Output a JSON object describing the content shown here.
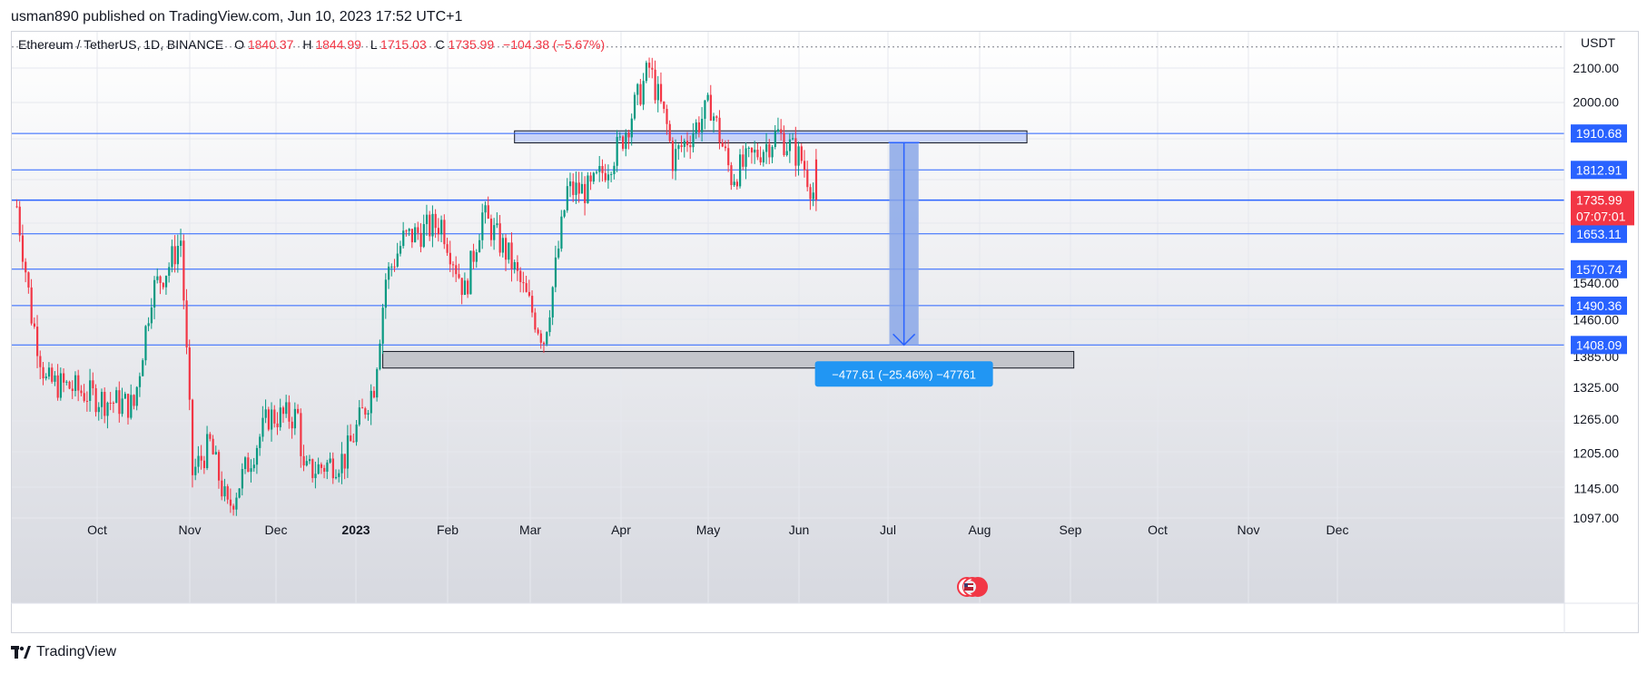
{
  "header": {
    "published_line": "usman890 published on TradingView.com, Jun 10, 2023 17:52 UTC+1"
  },
  "legend": {
    "symbol": "Ethereum / TetherUS, 1D, BINANCE",
    "o_label": "O",
    "o_value": "1840.37",
    "h_label": "H",
    "h_value": "1844.99",
    "l_label": "L",
    "l_value": "1715.03",
    "c_label": "C",
    "c_value": "1735.99",
    "change": "−104.38 (−5.67%)"
  },
  "axis": {
    "currency": "USDT"
  },
  "measure": {
    "label": "−477.61 (−25.46%) −47761"
  },
  "footer": {
    "brand": "TradingView"
  },
  "colors": {
    "up": "#089981",
    "down": "#f23645",
    "line": "#2962ff",
    "label_bg": "#2962ff",
    "last_price_bg": "#f23645",
    "measure_fill": "#8aa7e8",
    "zone_fill": "#c9d4f8",
    "support_fill": "#c3c5cb"
  },
  "chart_data": {
    "type": "candlestick",
    "title": "Ethereum / TetherUS, 1D, BINANCE",
    "ylabel": "USDT",
    "y_scale": "log",
    "ylim": [
      1097,
      2180
    ],
    "x_ticks": [
      "Oct",
      "Nov",
      "Dec",
      "2023",
      "Feb",
      "Mar",
      "Apr",
      "May",
      "Jun",
      "Jul",
      "Aug",
      "Sep",
      "Oct",
      "Nov",
      "Dec"
    ],
    "y_ticks": [
      "2100.00",
      "2000.00",
      "1540.00",
      "1460.00",
      "1385.00",
      "1325.00",
      "1265.00",
      "1205.00",
      "1145.00",
      "1097.00"
    ],
    "price_levels": [
      "1910.68",
      "1812.91",
      "1734.86",
      "1653.11",
      "1570.74",
      "1490.36",
      "1408.09"
    ],
    "last_price": {
      "value": "1735.99",
      "countdown": "07:07:01"
    },
    "resistance_zone": [
      1885,
      1918
    ],
    "support_zone": [
      1362,
      1395
    ],
    "projection": {
      "from": 1885.7,
      "to": 1408.09,
      "change": -477.61,
      "change_pct": -25.46,
      "ticks": -47761
    },
    "series": [
      {
        "date": "2022-09-10",
        "close": 1720
      },
      {
        "date": "2022-09-13",
        "close": 1570
      },
      {
        "date": "2022-09-15",
        "close": 1470
      },
      {
        "date": "2022-09-20",
        "close": 1335
      },
      {
        "date": "2022-09-28",
        "close": 1325
      },
      {
        "date": "2022-10-10",
        "close": 1300
      },
      {
        "date": "2022-10-20",
        "close": 1290
      },
      {
        "date": "2022-10-26",
        "close": 1520
      },
      {
        "date": "2022-11-01",
        "close": 1580
      },
      {
        "date": "2022-11-05",
        "close": 1640
      },
      {
        "date": "2022-11-09",
        "close": 1170
      },
      {
        "date": "2022-11-15",
        "close": 1220
      },
      {
        "date": "2022-11-21",
        "close": 1110
      },
      {
        "date": "2022-12-05",
        "close": 1270
      },
      {
        "date": "2022-12-15",
        "close": 1270
      },
      {
        "date": "2022-12-17",
        "close": 1170
      },
      {
        "date": "2022-12-31",
        "close": 1196
      },
      {
        "date": "2023-01-10",
        "close": 1330
      },
      {
        "date": "2023-01-14",
        "close": 1550
      },
      {
        "date": "2023-01-20",
        "close": 1640
      },
      {
        "date": "2023-02-02",
        "close": 1680
      },
      {
        "date": "2023-02-10",
        "close": 1520
      },
      {
        "date": "2023-02-16",
        "close": 1700
      },
      {
        "date": "2023-02-25",
        "close": 1600
      },
      {
        "date": "2023-03-09",
        "close": 1420
      },
      {
        "date": "2023-03-12",
        "close": 1530
      },
      {
        "date": "2023-03-17",
        "close": 1760
      },
      {
        "date": "2023-03-25",
        "close": 1760
      },
      {
        "date": "2023-04-04",
        "close": 1880
      },
      {
        "date": "2023-04-14",
        "close": 2100
      },
      {
        "date": "2023-04-20",
        "close": 1930
      },
      {
        "date": "2023-04-22",
        "close": 1840
      },
      {
        "date": "2023-05-05",
        "close": 1990
      },
      {
        "date": "2023-05-12",
        "close": 1795
      },
      {
        "date": "2023-05-28",
        "close": 1910
      },
      {
        "date": "2023-06-05",
        "close": 1840
      },
      {
        "date": "2023-06-10",
        "close": 1735.99
      }
    ]
  }
}
